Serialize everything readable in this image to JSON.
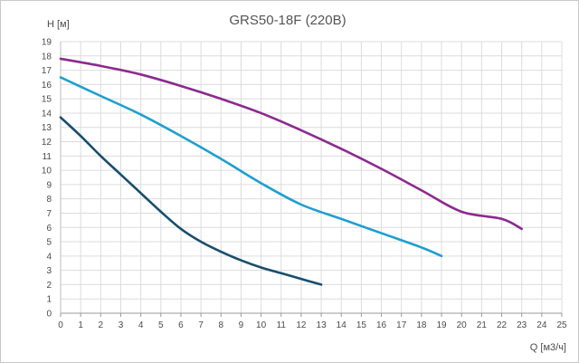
{
  "chart_data": {
    "type": "line",
    "title": "GRS50-18F (220В)",
    "xlabel": "Q [м3/ч]",
    "ylabel": "H [м]",
    "xlim": [
      0,
      25
    ],
    "ylim": [
      0,
      19
    ],
    "x_ticks": [
      0,
      1,
      2,
      3,
      4,
      5,
      6,
      7,
      8,
      9,
      10,
      11,
      12,
      13,
      14,
      15,
      16,
      17,
      18,
      19,
      20,
      21,
      22,
      23,
      24,
      25
    ],
    "y_ticks": [
      0,
      1,
      2,
      3,
      4,
      5,
      6,
      7,
      8,
      9,
      10,
      11,
      12,
      13,
      14,
      15,
      16,
      17,
      18,
      19
    ],
    "grid": true,
    "legend": "none",
    "series": [
      {
        "color": "#8B2A8F",
        "x": [
          0,
          2,
          4,
          6,
          8,
          10,
          12,
          14,
          16,
          18,
          20,
          22,
          23
        ],
        "y": [
          17.8,
          17.3,
          16.7,
          15.9,
          15.0,
          14.0,
          12.8,
          11.5,
          10.1,
          8.6,
          7.1,
          6.6,
          5.9
        ]
      },
      {
        "color": "#1E9FCF",
        "x": [
          0,
          2,
          4,
          6,
          8,
          10,
          12,
          14,
          16,
          18,
          19
        ],
        "y": [
          16.5,
          15.2,
          13.9,
          12.4,
          10.8,
          9.1,
          7.6,
          6.6,
          5.6,
          4.6,
          4.0
        ]
      },
      {
        "color": "#184E6E",
        "x": [
          0,
          1,
          2,
          3,
          4,
          5,
          6,
          7,
          8,
          9,
          10,
          11,
          12,
          13
        ],
        "y": [
          13.7,
          12.4,
          11.0,
          9.7,
          8.4,
          7.1,
          5.9,
          5.0,
          4.3,
          3.7,
          3.2,
          2.8,
          2.4,
          2.0
        ]
      }
    ]
  }
}
